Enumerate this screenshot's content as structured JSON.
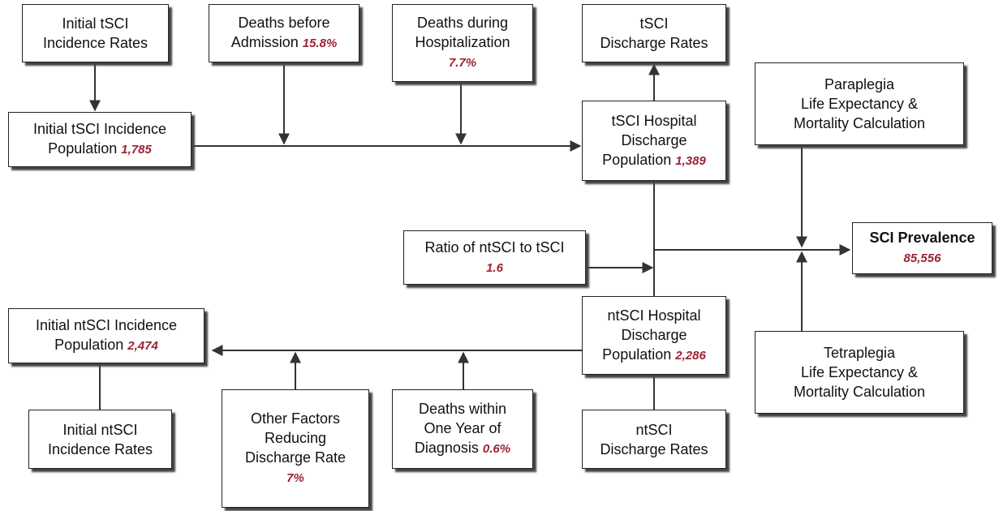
{
  "nodes": [
    {
      "lines": [
        "Initial tSCI",
        "Incidence Rates"
      ]
    },
    {
      "lines": [
        "Deaths before",
        "Admission"
      ],
      "value": "15.8%"
    },
    {
      "lines": [
        "Deaths during",
        "Hospitalization"
      ],
      "value": "7.7%"
    },
    {
      "lines": [
        "tSCI",
        "Discharge Rates"
      ]
    },
    {
      "lines": [
        "Initial tSCI Incidence",
        "Population"
      ],
      "value": "1,785"
    },
    {
      "lines": [
        "tSCI Hospital",
        "Discharge",
        "Population"
      ],
      "value": "1,389"
    },
    {
      "lines": [
        "Paraplegia",
        "Life Expectancy &",
        "Mortality Calculation"
      ]
    },
    {
      "lines": [
        "SCI Prevalence"
      ],
      "value": "85,556"
    },
    {
      "lines": [
        "Ratio of ntSCI to tSCI"
      ],
      "value": "1.6"
    },
    {
      "lines": [
        "ntSCI Hospital",
        "Discharge",
        "Population"
      ],
      "value": "2,286"
    },
    {
      "lines": [
        "Initial ntSCI Incidence",
        "Population"
      ],
      "value": "2,474"
    },
    {
      "lines": [
        "Tetraplegia",
        "Life Expectancy &",
        "Mortality Calculation"
      ]
    },
    {
      "lines": [
        "Initial ntSCI",
        "Incidence Rates"
      ]
    },
    {
      "lines": [
        "Other Factors",
        "Reducing",
        "Discharge Rate"
      ],
      "value": "7%"
    },
    {
      "lines": [
        "Deaths within",
        "One Year of",
        "Diagnosis"
      ],
      "value": "0.6%"
    },
    {
      "lines": [
        "ntSCI",
        "Discharge Rates"
      ]
    }
  ]
}
